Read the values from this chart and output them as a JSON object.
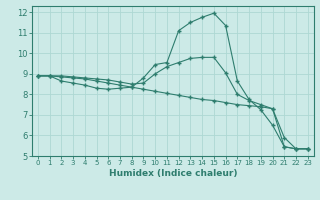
{
  "xlabel": "Humidex (Indice chaleur)",
  "bg_color": "#cceae7",
  "line_color": "#2e7d6e",
  "grid_color": "#aed8d3",
  "xlim": [
    -0.5,
    23.5
  ],
  "ylim": [
    5,
    12.3
  ],
  "xticks": [
    0,
    1,
    2,
    3,
    4,
    5,
    6,
    7,
    8,
    9,
    10,
    11,
    12,
    13,
    14,
    15,
    16,
    17,
    18,
    19,
    20,
    21,
    22,
    23
  ],
  "yticks": [
    5,
    6,
    7,
    8,
    9,
    10,
    11,
    12
  ],
  "line1_x": [
    0,
    1,
    2,
    3,
    4,
    5,
    6,
    7,
    8,
    9,
    10,
    11,
    12,
    13,
    14,
    15,
    16,
    17,
    18,
    19,
    20,
    21,
    22,
    23
  ],
  "line1_y": [
    8.9,
    8.9,
    8.65,
    8.55,
    8.45,
    8.3,
    8.25,
    8.3,
    8.35,
    8.8,
    9.45,
    9.55,
    11.1,
    11.5,
    11.75,
    11.95,
    11.35,
    8.65,
    7.75,
    7.25,
    6.5,
    5.45,
    5.35,
    5.35
  ],
  "line2_x": [
    0,
    1,
    2,
    3,
    4,
    5,
    6,
    7,
    8,
    9,
    10,
    11,
    12,
    13,
    14,
    15,
    16,
    17,
    18,
    19,
    20,
    21,
    22,
    23
  ],
  "line2_y": [
    8.9,
    8.9,
    8.9,
    8.85,
    8.8,
    8.75,
    8.7,
    8.6,
    8.5,
    8.55,
    9.0,
    9.35,
    9.55,
    9.75,
    9.8,
    9.8,
    9.05,
    8.0,
    7.7,
    7.5,
    7.3,
    5.9,
    5.35,
    5.35
  ],
  "line3_x": [
    0,
    1,
    2,
    3,
    4,
    5,
    6,
    7,
    8,
    9,
    10,
    11,
    12,
    13,
    14,
    15,
    16,
    17,
    18,
    19,
    20,
    21,
    22,
    23
  ],
  "line3_y": [
    8.9,
    8.9,
    8.85,
    8.8,
    8.75,
    8.65,
    8.55,
    8.45,
    8.35,
    8.25,
    8.15,
    8.05,
    7.95,
    7.85,
    7.75,
    7.7,
    7.6,
    7.5,
    7.45,
    7.4,
    7.3,
    5.45,
    5.35,
    5.35
  ]
}
